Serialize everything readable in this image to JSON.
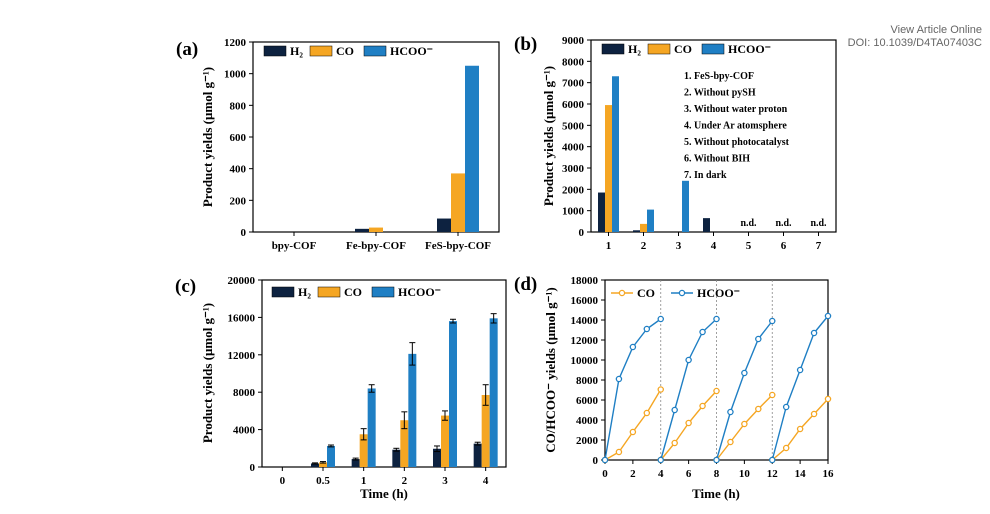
{
  "watermark": {
    "line1": "View Article Online",
    "line2": "DOI: 10.1039/D4TA07403C"
  },
  "colors": {
    "H2": "#0d2240",
    "CO": "#f5a623",
    "HCOO": "#1f7fc4"
  },
  "chart_data": [
    {
      "panel": "(a)",
      "type": "bar",
      "ylabel": "Product yields (μmol g⁻¹)",
      "ylim": [
        0,
        1200
      ],
      "yticks": [
        "0",
        "200",
        "400",
        "600",
        "800",
        "1000",
        "1200"
      ],
      "categories": [
        "bpy-COF",
        "Fe-bpy-COF",
        "FeS-bpy-COF"
      ],
      "series": [
        {
          "name": "H₂",
          "values": [
            0,
            20,
            85
          ]
        },
        {
          "name": "CO",
          "values": [
            0,
            28,
            370
          ]
        },
        {
          "name": "HCOO⁻",
          "values": [
            0,
            0,
            1050
          ]
        }
      ],
      "legend": "top"
    },
    {
      "panel": "(b)",
      "type": "bar",
      "ylabel": "Product yields (μmol g⁻¹)",
      "ylim": [
        0,
        9000
      ],
      "yticks": [
        "0",
        "1000",
        "2000",
        "3000",
        "4000",
        "5000",
        "6000",
        "7000",
        "8000",
        "9000"
      ],
      "categories": [
        "1",
        "2",
        "3",
        "4",
        "5",
        "6",
        "7"
      ],
      "series": [
        {
          "name": "H₂",
          "values": [
            1850,
            80,
            0,
            650,
            0,
            0,
            0
          ]
        },
        {
          "name": "CO",
          "values": [
            5950,
            380,
            0,
            0,
            0,
            0,
            0
          ]
        },
        {
          "name": "HCOO⁻",
          "values": [
            7300,
            1050,
            2400,
            0,
            0,
            0,
            0
          ]
        }
      ],
      "annotations": [
        "n.d.",
        "n.d.",
        "n.d."
      ],
      "conditions": [
        "1. FeS-bpy-COF",
        "2. Without pySH",
        "3. Without water proton",
        "4. Under Ar atomsphere",
        "5. Without photocatalyst",
        "6. Without BIH",
        "7. In dark"
      ],
      "legend": "top"
    },
    {
      "panel": "(c)",
      "type": "bar",
      "xlabel": "Time (h)",
      "ylabel": "Product yields (μmol g⁻¹)",
      "ylim": [
        0,
        20000
      ],
      "yticks": [
        "0",
        "4000",
        "8000",
        "12000",
        "16000",
        "20000"
      ],
      "categories": [
        "0",
        "0.5",
        "1",
        "2",
        "3",
        "4"
      ],
      "series": [
        {
          "name": "H₂",
          "values": [
            0,
            380,
            850,
            1850,
            1950,
            2500
          ],
          "errors": [
            0,
            60,
            100,
            150,
            300,
            150
          ]
        },
        {
          "name": "CO",
          "values": [
            0,
            500,
            3500,
            5000,
            5500,
            7700
          ],
          "errors": [
            0,
            80,
            600,
            900,
            500,
            1100
          ]
        },
        {
          "name": "HCOO⁻",
          "values": [
            0,
            2250,
            8400,
            12100,
            15600,
            15900
          ],
          "errors": [
            0,
            100,
            400,
            1200,
            200,
            500
          ]
        }
      ],
      "legend": "top"
    },
    {
      "panel": "(d)",
      "type": "line",
      "xlabel": "Time (h)",
      "ylabel": "CO/HCOO⁻ yields (μmol g⁻¹)",
      "xlim": [
        0,
        16
      ],
      "ylim": [
        0,
        18000
      ],
      "xticks": [
        "0",
        "2",
        "4",
        "6",
        "8",
        "10",
        "12",
        "14",
        "16"
      ],
      "yticks": [
        "0",
        "2000",
        "4000",
        "6000",
        "8000",
        "10000",
        "12000",
        "14000",
        "16000",
        "18000"
      ],
      "cycle_lines": [
        4,
        8,
        12
      ],
      "series": [
        {
          "name": "CO",
          "x": [
            0,
            1,
            2,
            3,
            4,
            4,
            5,
            6,
            7,
            8,
            8,
            9,
            10,
            11,
            12,
            12,
            13,
            14,
            15,
            16
          ],
          "y": [
            0,
            800,
            2800,
            4700,
            7050,
            0,
            1700,
            3700,
            5400,
            6900,
            0,
            1800,
            3600,
            5100,
            6500,
            0,
            1200,
            3100,
            4600,
            6100
          ]
        },
        {
          "name": "HCOO⁻",
          "x": [
            0,
            1,
            2,
            3,
            4,
            4,
            5,
            6,
            7,
            8,
            8,
            9,
            10,
            11,
            12,
            12,
            13,
            14,
            15,
            16
          ],
          "y": [
            0,
            8100,
            11300,
            13100,
            14100,
            0,
            5000,
            10000,
            12800,
            14100,
            0,
            4800,
            8700,
            12100,
            13900,
            0,
            5300,
            9000,
            12700,
            14400
          ]
        }
      ],
      "legend": "top"
    }
  ]
}
